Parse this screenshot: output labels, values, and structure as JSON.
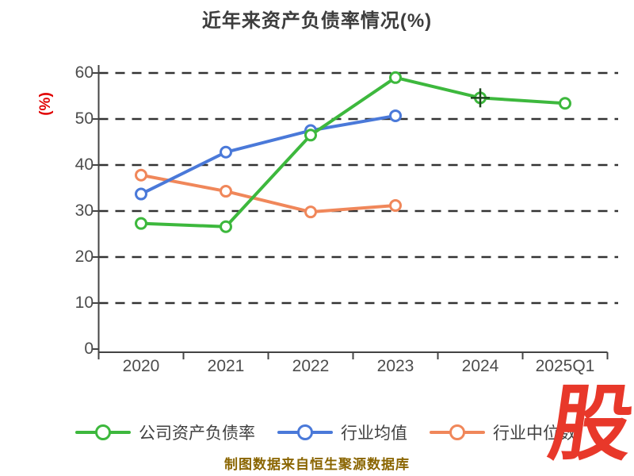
{
  "title": "近年来资产负债率情况(%)",
  "y_axis_title": "(%)",
  "caption": "制图数据来自恒生聚源数据库",
  "logo_text": "股",
  "colors": {
    "y_axis_title": "#e00000",
    "caption": "#8a6500",
    "logo": "#e8382a",
    "gridline": "#333333",
    "axis": "#444444"
  },
  "chart_data": {
    "type": "line",
    "categories": [
      "2020",
      "2021",
      "2022",
      "2023",
      "2024",
      "2025Q1"
    ],
    "series": [
      {
        "name": "公司资产负债率",
        "color": "#3db83d",
        "values": [
          27.3,
          26.6,
          46.5,
          59.0,
          54.6,
          53.4
        ]
      },
      {
        "name": "行业均值",
        "color": "#4a79d9",
        "values": [
          33.7,
          42.8,
          47.5,
          50.7,
          null,
          null
        ]
      },
      {
        "name": "行业中位数",
        "color": "#f0875a",
        "values": [
          37.8,
          34.3,
          29.8,
          31.2,
          null,
          null
        ]
      }
    ],
    "title": "近年来资产负债率情况(%)",
    "xlabel": "",
    "ylabel": "(%)",
    "ylim": [
      0,
      60
    ],
    "yticks": [
      0,
      10,
      20,
      30,
      40,
      50,
      60
    ],
    "grid": "horizontal-dashed",
    "legend_position": "bottom",
    "special_marker": {
      "series": 0,
      "index": 4,
      "type": "circle-cross"
    }
  }
}
